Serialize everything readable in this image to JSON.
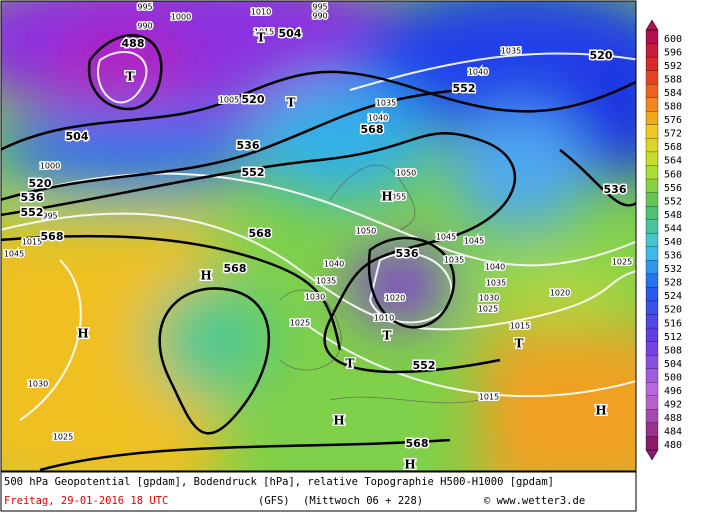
{
  "map": {
    "geopotential_labels": [
      "488",
      "504",
      "504",
      "520",
      "536",
      "552",
      "520",
      "536",
      "552",
      "568",
      "568",
      "568",
      "552",
      "568",
      "536",
      "552",
      "568",
      "520",
      "536"
    ],
    "pressure_labels": [
      "995",
      "990",
      "1000",
      "1010",
      "995",
      "990",
      "1015",
      "1005",
      "1035",
      "1040",
      "1035",
      "1040",
      "1050",
      "1055",
      "1050",
      "1045",
      "1045",
      "1035",
      "1040",
      "1035",
      "1020",
      "1025",
      "1030",
      "1025",
      "1015",
      "1020",
      "1010",
      "1025",
      "1030",
      "1035",
      "1040",
      "1015",
      "1030",
      "1025",
      "1015",
      "1045",
      "1000",
      "995"
    ],
    "centers": [
      "T",
      "T",
      "T",
      "H",
      "H",
      "H",
      "T",
      "T",
      "T",
      "H",
      "H",
      "H"
    ]
  },
  "legend": {
    "ticks": [
      "600",
      "596",
      "592",
      "588",
      "584",
      "580",
      "576",
      "572",
      "568",
      "564",
      "560",
      "556",
      "552",
      "548",
      "544",
      "540",
      "536",
      "532",
      "528",
      "524",
      "520",
      "516",
      "512",
      "508",
      "504",
      "500",
      "496",
      "492",
      "488",
      "484",
      "480"
    ]
  },
  "footer": {
    "description": "500 hPa Geopotential [gpdam], Bodendruck [hPa], relative Topographie H500-H1000 [gpdam]",
    "date": "Freitag, 29-01-2016  18 UTC",
    "model": "(GFS)",
    "forecast": "(Mittwoch 06 + 228)",
    "source": "© www.wetter3.de"
  }
}
